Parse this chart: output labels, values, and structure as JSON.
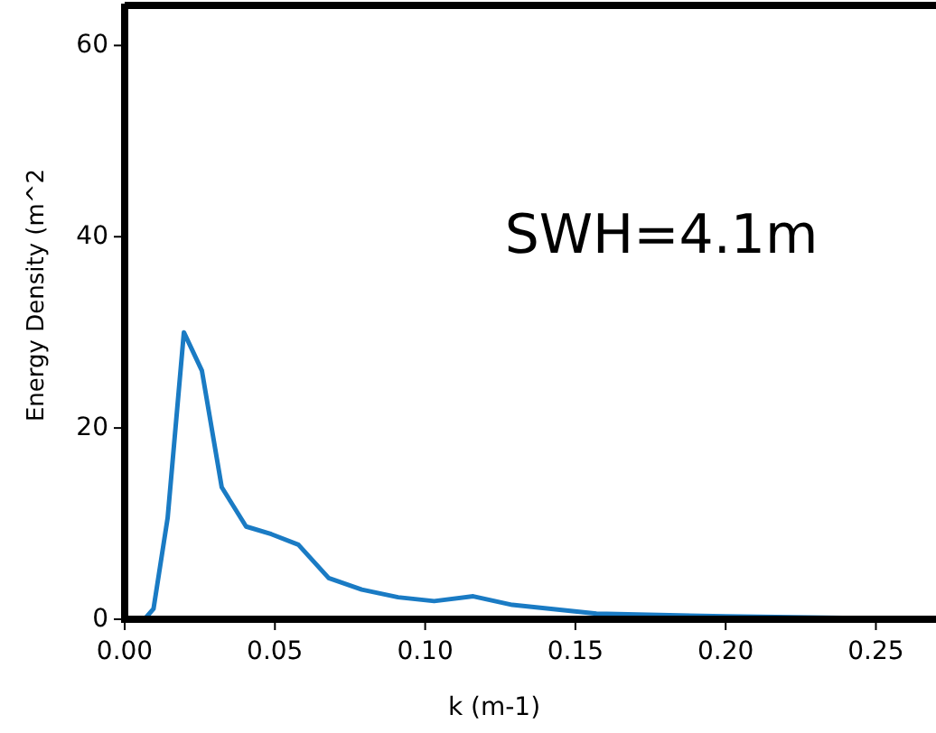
{
  "chart_data": {
    "type": "line",
    "xlabel": "k (m-1)",
    "ylabel": "Energy Density (m^2",
    "annotations": [
      "SWH=4.1m"
    ],
    "x": [
      0.0066,
      0.0096,
      0.0143,
      0.0197,
      0.0257,
      0.0323,
      0.0404,
      0.0488,
      0.0578,
      0.0679,
      0.0789,
      0.091,
      0.103,
      0.116,
      0.129,
      0.157,
      0.2,
      0.25,
      0.27
    ],
    "series": [
      {
        "color": "#1a7bc4",
        "values": [
          0,
          1.1,
          10.6,
          30,
          26,
          13.8,
          9.7,
          8.9,
          7.8,
          4.3,
          3.1,
          2.3,
          1.9,
          2.4,
          1.5,
          0.6,
          0.3,
          0.1,
          0
        ]
      }
    ],
    "xlim": [
      0,
      0.27
    ],
    "ylim": [
      0,
      64
    ],
    "xticks": [
      {
        "value": 0,
        "label": "0.00"
      },
      {
        "value": 0.05,
        "label": "0.05"
      },
      {
        "value": 0.1,
        "label": "0.10"
      },
      {
        "value": 0.15,
        "label": "0.15"
      },
      {
        "value": 0.2,
        "label": "0.20"
      },
      {
        "value": 0.25,
        "label": "0.25"
      }
    ],
    "yticks": [
      0,
      20,
      40,
      60
    ],
    "grid": false,
    "marker": "none",
    "line_style": "solid"
  }
}
